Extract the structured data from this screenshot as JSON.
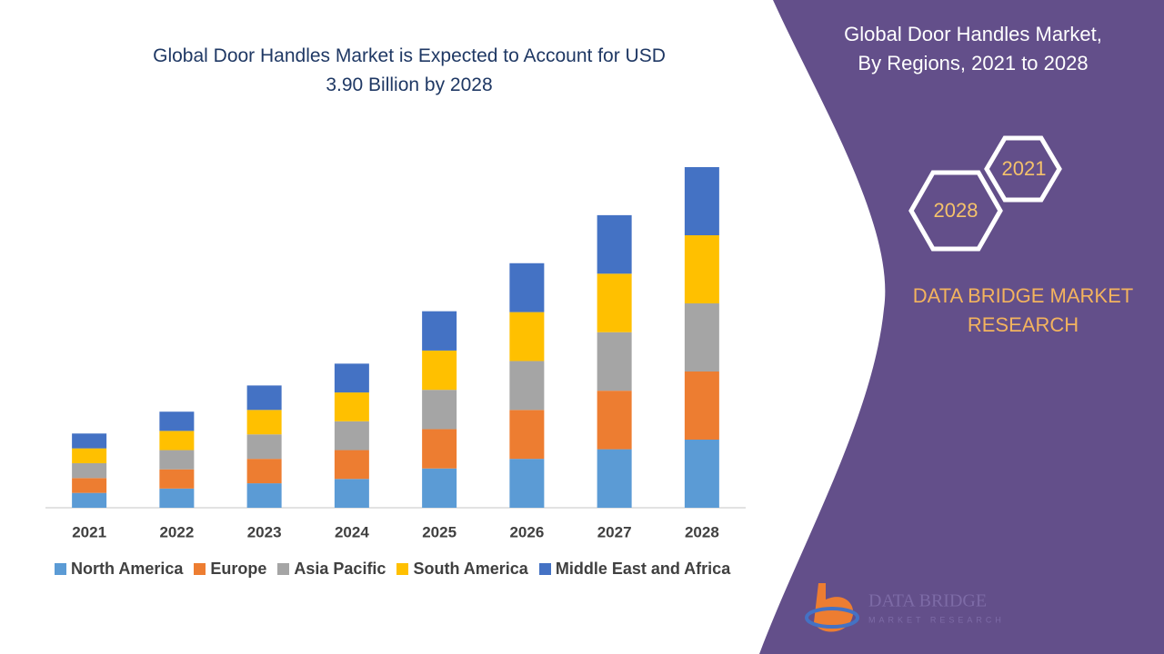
{
  "chart_data": {
    "type": "stacked-bar",
    "title": "Global Door Handles Market is Expected to Account for USD 3.90 Billion by 2028",
    "categories": [
      "2021",
      "2022",
      "2023",
      "2024",
      "2025",
      "2026",
      "2027",
      "2028"
    ],
    "series": [
      {
        "name": "North America",
        "color": "#5b9bd5",
        "values": [
          0.17,
          0.22,
          0.28,
          0.33,
          0.45,
          0.56,
          0.67,
          0.78
        ]
      },
      {
        "name": "Europe",
        "color": "#ed7d31",
        "values": [
          0.17,
          0.22,
          0.28,
          0.33,
          0.45,
          0.56,
          0.67,
          0.78
        ]
      },
      {
        "name": "Asia Pacific",
        "color": "#a5a5a5",
        "values": [
          0.17,
          0.22,
          0.28,
          0.33,
          0.45,
          0.56,
          0.67,
          0.78
        ]
      },
      {
        "name": "South America",
        "color": "#ffc000",
        "values": [
          0.17,
          0.22,
          0.28,
          0.33,
          0.45,
          0.56,
          0.67,
          0.78
        ]
      },
      {
        "name": "Middle East and Africa",
        "color": "#4472c4",
        "values": [
          0.17,
          0.22,
          0.28,
          0.33,
          0.45,
          0.56,
          0.67,
          0.78
        ]
      }
    ],
    "ylim": [
      0,
      3.9
    ]
  },
  "panel": {
    "title_lines": [
      "Global Door Handles Market,",
      "By Regions, 2021 to 2028"
    ],
    "hex_labels": [
      "2021",
      "2028"
    ],
    "brand": "DATA BRIDGE MARKET RESEARCH",
    "logo_name": "DATA BRIDGE",
    "logo_tagline": "MARKET RESEARCH"
  }
}
